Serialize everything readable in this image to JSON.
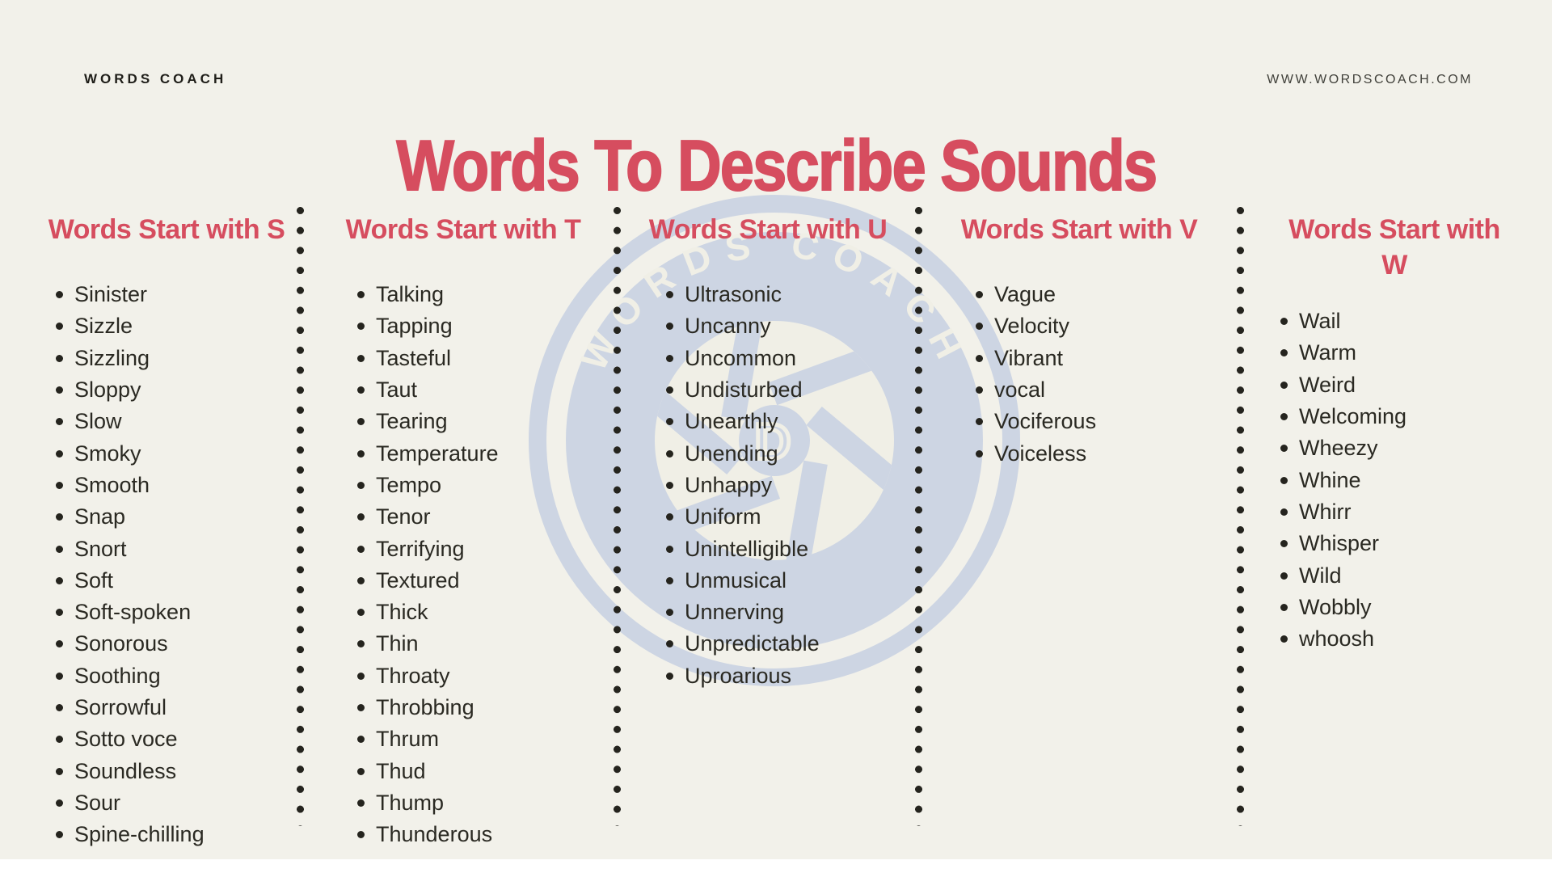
{
  "brand": {
    "logo_text": "WORDS COACH",
    "website": "WWW.WORDSCOACH.COM"
  },
  "title": "Words To Describe Sounds",
  "watermark": {
    "arc_text": "WORDS COACH",
    "center_letter": "D"
  },
  "colors": {
    "background": "#f2f1ea",
    "accent_red": "#d64d5f",
    "text_dark": "#2a2922",
    "divider_dot": "#25241e",
    "watermark_blue": "#cdd5e3",
    "watermark_cream": "#f0efe6"
  },
  "columns": [
    {
      "heading": "Words Start with S",
      "words": [
        "Sinister",
        "Sizzle",
        "Sizzling",
        "Sloppy",
        "Slow",
        "Smoky",
        "Smooth",
        "Snap",
        "Snort",
        "Soft",
        "Soft-spoken",
        "Sonorous",
        "Soothing",
        "Sorrowful",
        "Sotto voce",
        "Soundless",
        "Sour",
        "Spine-chilling"
      ]
    },
    {
      "heading": "Words Start with T",
      "words": [
        "Talking",
        "Tapping",
        "Tasteful",
        "Taut",
        "Tearing",
        "Temperature",
        "Tempo",
        "Tenor",
        "Terrifying",
        "Textured",
        "Thick",
        "Thin",
        "Throaty",
        "Throbbing",
        "Thrum",
        "Thud",
        "Thump",
        "Thunderous"
      ]
    },
    {
      "heading": "Words Start with U",
      "words": [
        "Ultrasonic",
        "Uncanny",
        "Uncommon",
        "Undisturbed",
        "Unearthly",
        "Unending",
        "Unhappy",
        "Uniform",
        "Unintelligible",
        "Unmusical",
        "Unnerving",
        "Unpredictable",
        "Uproarious"
      ]
    },
    {
      "heading": "Words Start with V",
      "words": [
        "Vague",
        "Velocity",
        "Vibrant",
        "vocal",
        "Vociferous",
        "Voiceless"
      ]
    },
    {
      "heading": "Words Start with W",
      "words": [
        "Wail",
        "Warm",
        "Weird",
        "Welcoming",
        "Wheezy",
        "Whine",
        "Whirr",
        "Whisper",
        "Wild",
        "Wobbly",
        "whoosh"
      ]
    }
  ]
}
